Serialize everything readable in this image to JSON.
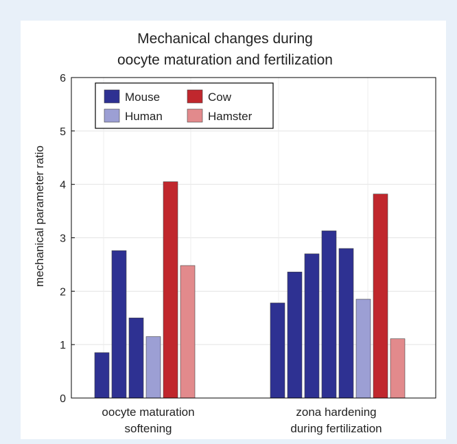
{
  "chart_data": {
    "type": "bar",
    "title_lines": [
      "Mechanical changes during",
      "oocyte maturation and fertilization"
    ],
    "ylabel": "mechanical parameter ratio",
    "ylim": [
      0,
      6
    ],
    "yticks": [
      0,
      1,
      2,
      3,
      4,
      5,
      6
    ],
    "grid": true,
    "legend_position": "top-left",
    "legend": [
      {
        "name": "Mouse",
        "color": "#2e3192"
      },
      {
        "name": "Cow",
        "color": "#c0272d"
      },
      {
        "name": "Human",
        "color": "#9c9fd4"
      },
      {
        "name": "Hamster",
        "color": "#e28a8c"
      }
    ],
    "groups": [
      {
        "label_lines": [
          "oocyte maturation",
          "softening"
        ],
        "bars": [
          {
            "series": "Mouse",
            "value": 0.85
          },
          {
            "series": "Mouse",
            "value": 2.76
          },
          {
            "series": "Mouse",
            "value": 1.5
          },
          {
            "series": "Human",
            "value": 1.15
          },
          {
            "series": "Cow",
            "value": 4.05
          },
          {
            "series": "Hamster",
            "value": 2.48
          }
        ]
      },
      {
        "label_lines": [
          "zona hardening",
          "during fertilization"
        ],
        "bars": [
          {
            "series": "Mouse",
            "value": 1.78
          },
          {
            "series": "Mouse",
            "value": 2.36
          },
          {
            "series": "Mouse",
            "value": 2.7
          },
          {
            "series": "Mouse",
            "value": 3.13
          },
          {
            "series": "Mouse",
            "value": 2.8
          },
          {
            "series": "Human",
            "value": 1.85
          },
          {
            "series": "Cow",
            "value": 3.82
          },
          {
            "series": "Hamster",
            "value": 1.11
          }
        ]
      }
    ]
  }
}
